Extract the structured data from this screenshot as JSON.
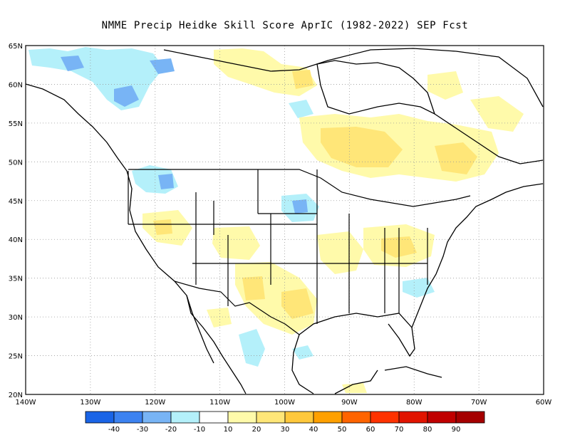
{
  "title": "NMME Precip Heidke Skill Score AprIC (1982-2022) SEP Fcst",
  "map": {
    "lat_labels": [
      "65N",
      "60N",
      "55N",
      "50N",
      "45N",
      "40N",
      "35N",
      "30N",
      "25N",
      "20N"
    ],
    "lon_labels": [
      "140W",
      "130W",
      "120W",
      "110W",
      "100W",
      "90W",
      "80W",
      "70W",
      "60W"
    ],
    "lat_range": [
      20,
      65
    ],
    "lon_range": [
      -140,
      -60
    ]
  },
  "colorbar": {
    "colors": [
      "#1a64e6",
      "#3c82f0",
      "#78b4f5",
      "#b4f0fa",
      "#ffffff",
      "#fffaaa",
      "#ffe678",
      "#ffc83c",
      "#ffa000",
      "#ff6400",
      "#ff3200",
      "#e11400",
      "#c00000",
      "#a50000"
    ],
    "labels": [
      "-40",
      "-30",
      "-20",
      "-10",
      "10",
      "20",
      "30",
      "40",
      "50",
      "60",
      "70",
      "80",
      "90"
    ]
  },
  "colors": {
    "neg_light": "#b4f0fa",
    "neg_mid": "#78b4f5",
    "neg_dark": "#3c82f0",
    "pos_light": "#fffaaa",
    "pos_mid": "#ffe678",
    "pos_dark": "#ffc83c"
  }
}
